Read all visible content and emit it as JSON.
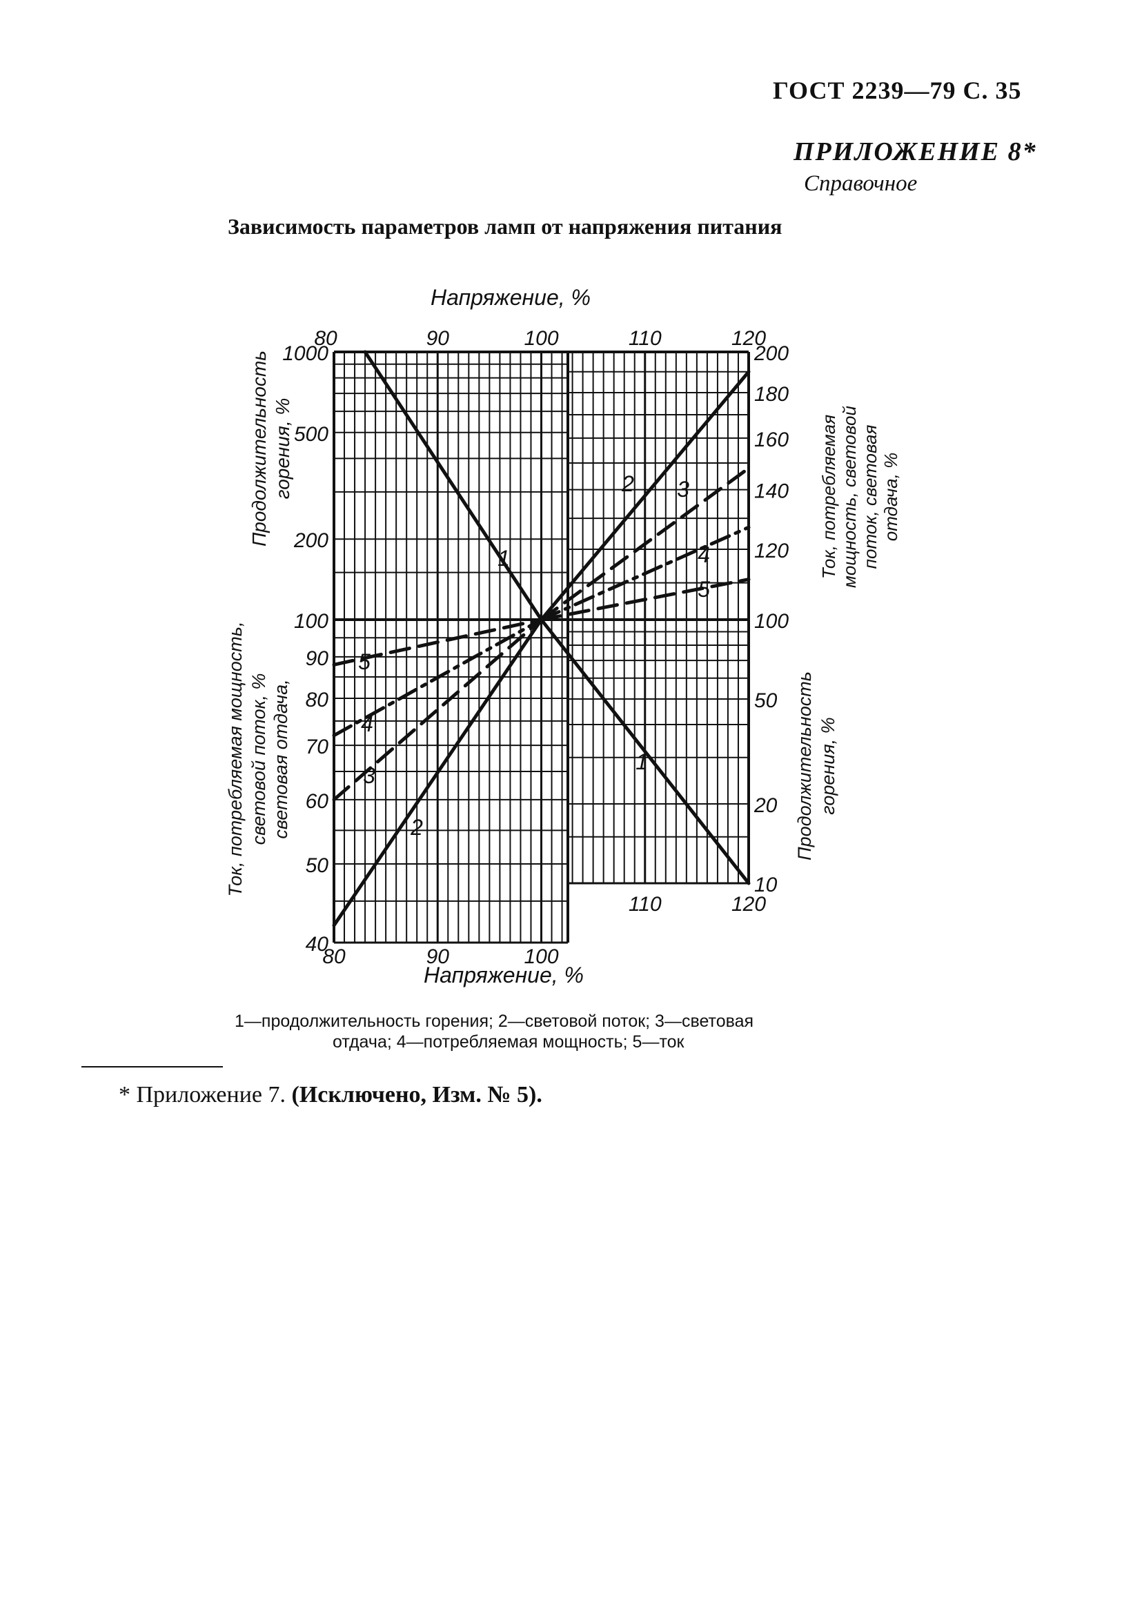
{
  "header": {
    "doc_ref": "ГОСТ 2239—79 С. 35",
    "appendix_title": "ПРИЛОЖЕНИЕ 8*",
    "appendix_subtitle": "Справочное"
  },
  "figure_title": "Зависимость параметров ламп от напряжения питания",
  "caption": {
    "line1": "1—продолжительность горения; 2—световой поток; 3—световая",
    "line2": "отдача; 4—потребляемая мощность; 5—ток"
  },
  "footnote": {
    "prefix": "* Приложение 7.",
    "note": "(Исключено, Изм. № 5)."
  },
  "chart_data": {
    "type": "line",
    "x_axis": {
      "label": "Напряжение, %",
      "bottom_ticks": [
        "80",
        "90",
        "100"
      ],
      "top_ticks": [
        "80",
        "90",
        "100",
        "110",
        "120"
      ],
      "bottom_right_ticks": [
        "110",
        "120"
      ],
      "range": [
        80,
        120
      ]
    },
    "left_upper_axis": {
      "label_line1": "Продолжительность",
      "label_line2": "горения, %",
      "ticks": [
        "1000",
        "500",
        "200",
        "100"
      ],
      "scale": "log"
    },
    "left_lower_axis": {
      "label_line1": "Ток, потребляемая мощность,",
      "label_line2": "световой поток, %",
      "label_line3": "световая отдача,",
      "ticks": [
        "100",
        "90",
        "80",
        "70",
        "60",
        "50",
        "40"
      ],
      "scale": "log"
    },
    "right_upper_axis": {
      "label_line1": "Ток, потребляемая",
      "label_line2": "мощность, световой",
      "label_line3": "поток, световая",
      "label_line4": "отдача, %",
      "ticks": [
        "200",
        "180",
        "160",
        "140",
        "120",
        "100"
      ],
      "scale": "log"
    },
    "right_lower_axis": {
      "label_line1": "Продолжительность",
      "label_line2": "горения, %",
      "ticks": [
        "50",
        "20",
        "10"
      ],
      "scale": "log"
    },
    "series": [
      {
        "name": "1",
        "style": "solid",
        "x": [
          83,
          100,
          120
        ],
        "y": [
          1000,
          100,
          10
        ]
      },
      {
        "name": "2",
        "style": "solid",
        "x": [
          80,
          100,
          120
        ],
        "y": [
          42,
          100,
          190
        ]
      },
      {
        "name": "3",
        "style": "dashed",
        "x": [
          80,
          100,
          120
        ],
        "y": [
          60,
          100,
          148
        ]
      },
      {
        "name": "4",
        "style": "dash-dot",
        "x": [
          80,
          100,
          120
        ],
        "y": [
          72,
          100,
          127
        ]
      },
      {
        "name": "5",
        "style": "dashed",
        "x": [
          80,
          100,
          120
        ],
        "y": [
          88,
          100,
          111
        ]
      }
    ]
  }
}
